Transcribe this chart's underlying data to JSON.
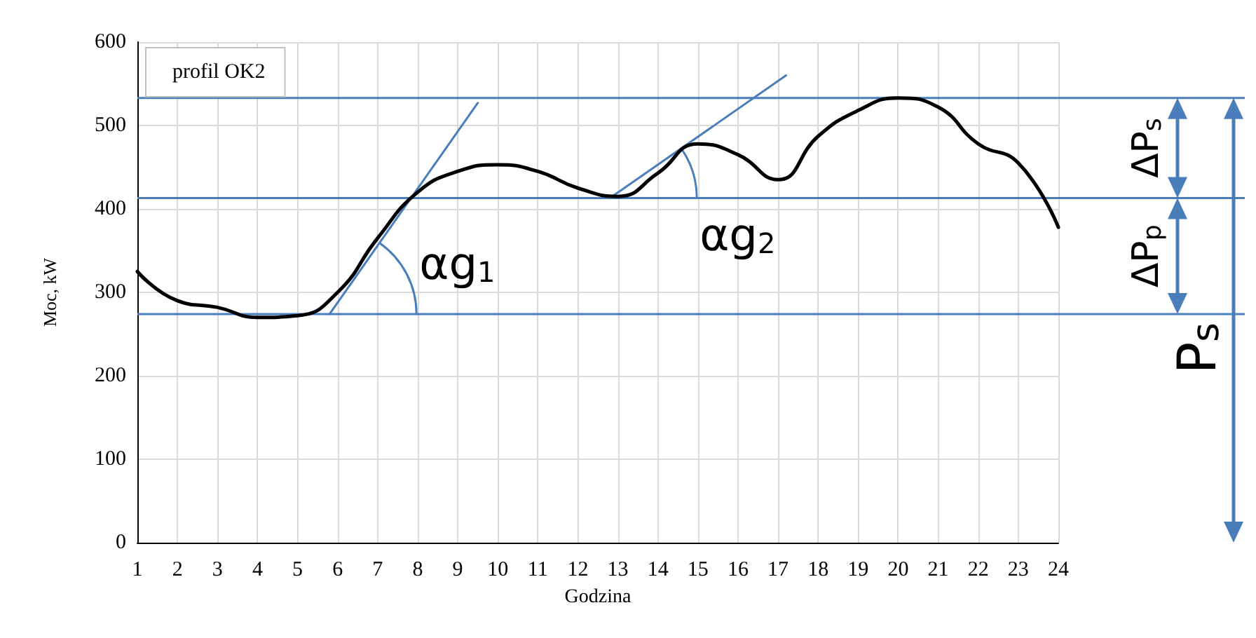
{
  "chart_data": {
    "type": "line",
    "xlabel": "Godzina",
    "ylabel": "Moc, kW",
    "x": [
      1,
      2,
      3,
      4,
      5,
      6,
      7,
      8,
      9,
      10,
      11,
      12,
      13,
      14,
      15,
      16,
      17,
      18,
      19,
      20,
      21,
      22,
      23,
      24
    ],
    "series": [
      {
        "name": "profil OK2",
        "color": "#000000",
        "values": [
          325,
          290,
          282,
          270,
          272,
          300,
          365,
          420,
          445,
          453,
          445,
          425,
          415,
          443,
          478,
          465,
          435,
          487,
          518,
          533,
          522,
          478,
          455,
          378
        ]
      },
      {
        "type": "line",
        "color": "#4a7ebb",
        "x": [
          5.8,
          9.5
        ],
        "values": [
          274,
          527
        ]
      },
      {
        "type": "line",
        "color": "#4a7ebb",
        "x": [
          12.8,
          17.2
        ],
        "values": [
          413,
          560
        ]
      }
    ],
    "xlim": [
      1,
      24
    ],
    "xticks": [
      1,
      2,
      3,
      4,
      5,
      6,
      7,
      8,
      9,
      10,
      11,
      12,
      13,
      14,
      15,
      16,
      17,
      18,
      19,
      20,
      21,
      22,
      23,
      24
    ],
    "ylim": [
      0,
      600
    ],
    "yticks": [
      0,
      100,
      200,
      300,
      400,
      500,
      600
    ],
    "grid": true,
    "legend": "top left",
    "marker": "none",
    "line_style": "solid",
    "ref_lines": [
      {
        "axis": "y",
        "value": 274,
        "color": "#4a7ebb"
      },
      {
        "axis": "y",
        "value": 413,
        "color": "#4a7ebb"
      },
      {
        "axis": "y",
        "value": 533,
        "color": "#4a7ebb"
      }
    ],
    "annotations": [
      "αg$_{1}$",
      "αg$_{2}$",
      "ΔP$_{s}$",
      "ΔP$_{p}$",
      "P$_{s}$"
    ]
  }
}
